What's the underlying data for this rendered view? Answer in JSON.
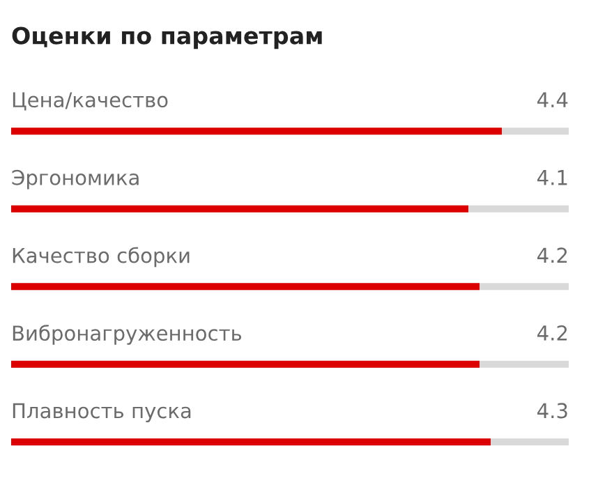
{
  "chart_data": {
    "type": "bar",
    "orientation": "horizontal",
    "title": "Оценки по параметрам",
    "categories": [
      "Цена/качество",
      "Эргономика",
      "Качество сборки",
      "Вибронагруженность",
      "Плавность пуска"
    ],
    "values": [
      4.4,
      4.1,
      4.2,
      4.2,
      4.3
    ],
    "color": "#dd0000",
    "xlim": [
      0,
      5
    ],
    "data_labels": true
  }
}
